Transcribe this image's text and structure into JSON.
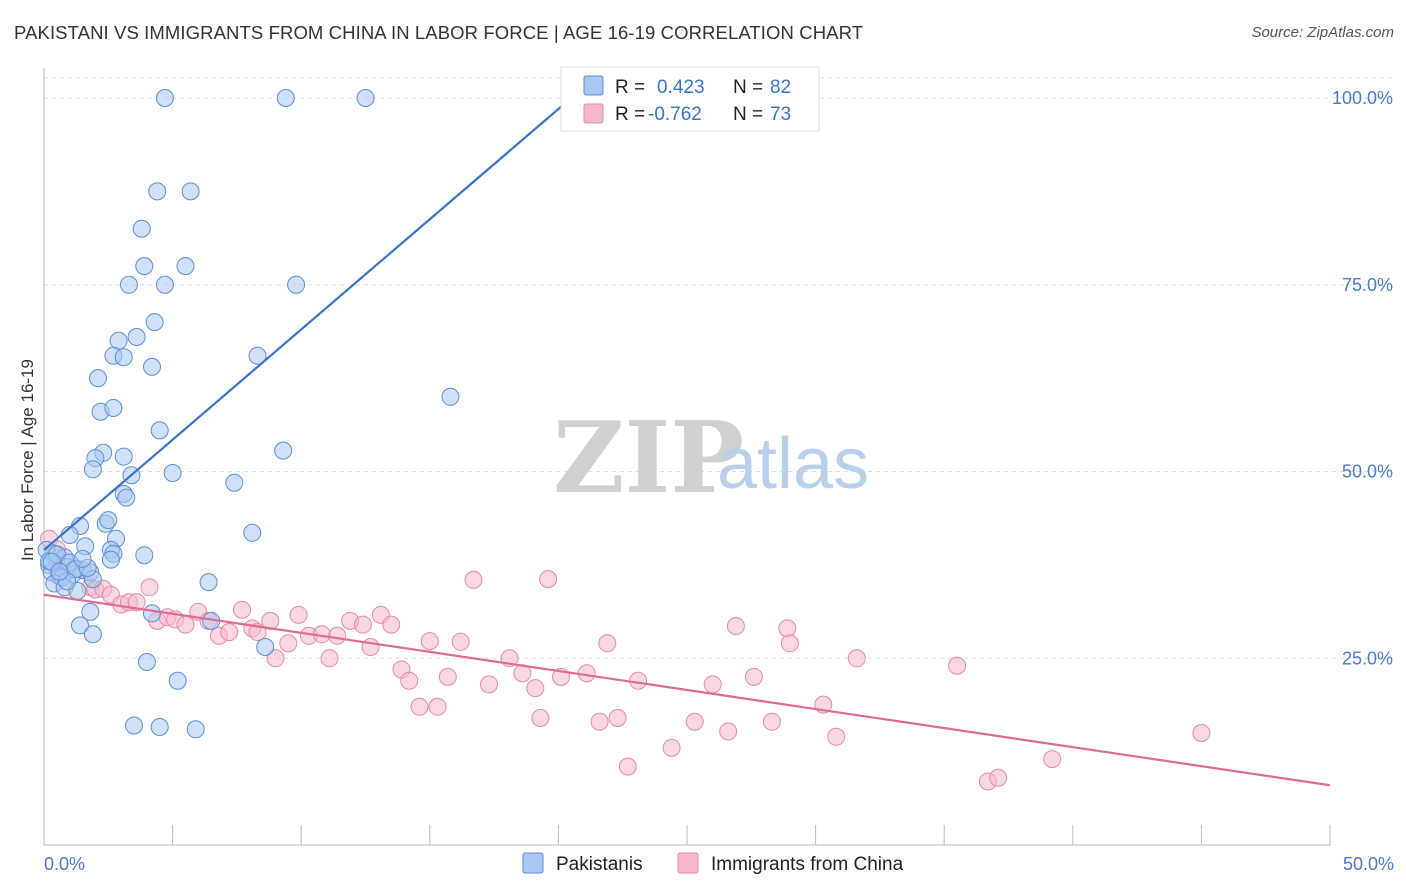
{
  "header": {
    "title": "PAKISTANI VS IMMIGRANTS FROM CHINA IN LABOR FORCE | AGE 16-19 CORRELATION CHART",
    "source": "Source: ZipAtlas.com"
  },
  "watermark": {
    "zip": "ZIP",
    "atlas": "atlas"
  },
  "colors": {
    "pakistani_fill": "#a9c8f0",
    "pakistani_stroke": "#5b8fd6",
    "pakistani_line": "#3b73c8",
    "china_fill": "#f5b8cb",
    "china_stroke": "#e68aa8",
    "china_line": "#e06a95",
    "axis_text": "#4a7ac9",
    "grid": "#dddddd"
  },
  "stats": {
    "r_label": "R =",
    "n_label": "N =",
    "rows": [
      {
        "r": "0.423",
        "n": "82"
      },
      {
        "r": "-0.762",
        "n": "73"
      }
    ]
  },
  "chart_data": {
    "type": "scatter",
    "title": "PAKISTANI VS IMMIGRANTS FROM CHINA IN LABOR FORCE | AGE 16-19 CORRELATION CHART",
    "xlabel": "",
    "ylabel": "In Labor Force | Age 16-19",
    "xlim": [
      0,
      50
    ],
    "ylim": [
      0,
      105
    ],
    "x_tick_labels": [
      "0.0%",
      "50.0%"
    ],
    "y_ticks": [
      25,
      50,
      75,
      100
    ],
    "y_tick_labels": [
      "25.0%",
      "50.0%",
      "75.0%",
      "100.0%"
    ],
    "grid": "horizontal dashed",
    "legend_position": "bottom-center",
    "series": [
      {
        "name": "Pakistanis",
        "r": 0.423,
        "n": 82,
        "trend": {
          "x0": 0,
          "y0": 39.5,
          "x1": 20.5,
          "y1": 100
        },
        "points": [
          [
            4.7,
            100
          ],
          [
            9.4,
            100
          ],
          [
            12.5,
            100
          ],
          [
            4.4,
            87.5
          ],
          [
            5.7,
            87.5
          ],
          [
            3.8,
            82.5
          ],
          [
            3.9,
            77.5
          ],
          [
            5.5,
            77.5
          ],
          [
            3.3,
            75
          ],
          [
            4.7,
            75
          ],
          [
            9.8,
            75
          ],
          [
            2.9,
            67.5
          ],
          [
            3.6,
            68
          ],
          [
            4.3,
            70
          ],
          [
            2.7,
            65.5
          ],
          [
            3.1,
            65.3
          ],
          [
            8.3,
            65.5
          ],
          [
            4.2,
            64
          ],
          [
            2.1,
            62.5
          ],
          [
            15.8,
            60
          ],
          [
            2.2,
            58
          ],
          [
            2.7,
            58.5
          ],
          [
            4.5,
            55.5
          ],
          [
            2.3,
            52.5
          ],
          [
            3.1,
            52
          ],
          [
            2.0,
            51.8
          ],
          [
            1.9,
            50.3
          ],
          [
            3.4,
            49.5
          ],
          [
            5.0,
            49.8
          ],
          [
            9.3,
            52.8
          ],
          [
            7.4,
            48.5
          ],
          [
            3.1,
            47
          ],
          [
            3.2,
            46.5
          ],
          [
            1.4,
            42.7
          ],
          [
            1.0,
            41.5
          ],
          [
            2.4,
            43
          ],
          [
            2.5,
            43.5
          ],
          [
            2.8,
            41
          ],
          [
            8.1,
            41.8
          ],
          [
            0.4,
            39
          ],
          [
            0.8,
            38.5
          ],
          [
            1.6,
            40
          ],
          [
            2.6,
            39.5
          ],
          [
            2.7,
            39
          ],
          [
            3.9,
            38.8
          ],
          [
            2.6,
            38.2
          ],
          [
            0.2,
            37.5
          ],
          [
            0.5,
            37.5
          ],
          [
            0.9,
            37.2
          ],
          [
            1.3,
            37
          ],
          [
            1.5,
            36.8
          ],
          [
            1.8,
            36.5
          ],
          [
            0.3,
            36.5
          ],
          [
            0.6,
            36
          ],
          [
            1.1,
            36.2
          ],
          [
            0.7,
            35.8
          ],
          [
            1.9,
            35.6
          ],
          [
            0.4,
            35
          ],
          [
            0.8,
            34.5
          ],
          [
            6.4,
            35.2
          ],
          [
            1.3,
            34
          ],
          [
            1.8,
            31.2
          ],
          [
            4.2,
            31
          ],
          [
            1.4,
            29.4
          ],
          [
            1.9,
            28.2
          ],
          [
            6.5,
            30
          ],
          [
            8.6,
            26.5
          ],
          [
            4.0,
            24.5
          ],
          [
            5.2,
            22
          ],
          [
            3.5,
            16
          ],
          [
            4.5,
            15.8
          ],
          [
            5.9,
            15.5
          ],
          [
            0.1,
            39.5
          ],
          [
            0.2,
            38
          ],
          [
            0.5,
            38.9
          ],
          [
            1.0,
            37.8
          ],
          [
            1.2,
            36.9
          ],
          [
            0.9,
            35.3
          ],
          [
            1.7,
            37.1
          ],
          [
            0.3,
            37.9
          ],
          [
            1.5,
            38.3
          ],
          [
            0.6,
            36.6
          ]
        ]
      },
      {
        "name": "Immigrants from China",
        "r": -0.762,
        "n": 73,
        "trend": {
          "x0": 0,
          "y0": 33.5,
          "x1": 50,
          "y1": 8
        },
        "points": [
          [
            0.2,
            41
          ],
          [
            0.8,
            38
          ],
          [
            1.8,
            34.5
          ],
          [
            2.0,
            34.2
          ],
          [
            2.3,
            34.3
          ],
          [
            2.6,
            33.5
          ],
          [
            3.0,
            32.2
          ],
          [
            3.3,
            32.5
          ],
          [
            3.6,
            32.5
          ],
          [
            4.1,
            34.5
          ],
          [
            4.4,
            30
          ],
          [
            4.8,
            30.5
          ],
          [
            5.1,
            30.2
          ],
          [
            5.5,
            29.5
          ],
          [
            6.0,
            31.2
          ],
          [
            6.4,
            30
          ],
          [
            6.8,
            28
          ],
          [
            7.2,
            28.5
          ],
          [
            7.7,
            31.5
          ],
          [
            8.1,
            29
          ],
          [
            8.3,
            28.5
          ],
          [
            8.8,
            30
          ],
          [
            9.0,
            25
          ],
          [
            9.5,
            27
          ],
          [
            9.9,
            30.8
          ],
          [
            10.3,
            28
          ],
          [
            10.8,
            28.2
          ],
          [
            11.1,
            25
          ],
          [
            11.4,
            28
          ],
          [
            11.9,
            30
          ],
          [
            12.4,
            29.5
          ],
          [
            12.7,
            26.5
          ],
          [
            13.1,
            30.8
          ],
          [
            13.5,
            29.5
          ],
          [
            13.9,
            23.5
          ],
          [
            14.2,
            22
          ],
          [
            14.6,
            18.5
          ],
          [
            15.0,
            27.3
          ],
          [
            15.3,
            18.5
          ],
          [
            15.7,
            22.5
          ],
          [
            16.2,
            27.2
          ],
          [
            16.7,
            35.5
          ],
          [
            17.3,
            21.5
          ],
          [
            18.1,
            25
          ],
          [
            18.6,
            23
          ],
          [
            19.1,
            21
          ],
          [
            19.3,
            17
          ],
          [
            19.6,
            35.6
          ],
          [
            20.1,
            22.5
          ],
          [
            21.1,
            23
          ],
          [
            21.6,
            16.5
          ],
          [
            21.9,
            27
          ],
          [
            22.3,
            17
          ],
          [
            22.7,
            10.5
          ],
          [
            23.1,
            22
          ],
          [
            24.4,
            13
          ],
          [
            25.3,
            16.5
          ],
          [
            26.0,
            21.5
          ],
          [
            26.6,
            15.2
          ],
          [
            26.9,
            29.3
          ],
          [
            27.6,
            22.5
          ],
          [
            28.3,
            16.5
          ],
          [
            28.9,
            29
          ],
          [
            29.0,
            27
          ],
          [
            30.3,
            18.8
          ],
          [
            30.8,
            14.5
          ],
          [
            31.6,
            25
          ],
          [
            35.5,
            24
          ],
          [
            36.7,
            8.5
          ],
          [
            37.1,
            9
          ],
          [
            39.2,
            11.5
          ],
          [
            45.0,
            15
          ],
          [
            0.5,
            39.6
          ]
        ]
      }
    ]
  },
  "legend": {
    "items": [
      {
        "label": "Pakistanis"
      },
      {
        "label": "Immigrants from China"
      }
    ]
  }
}
